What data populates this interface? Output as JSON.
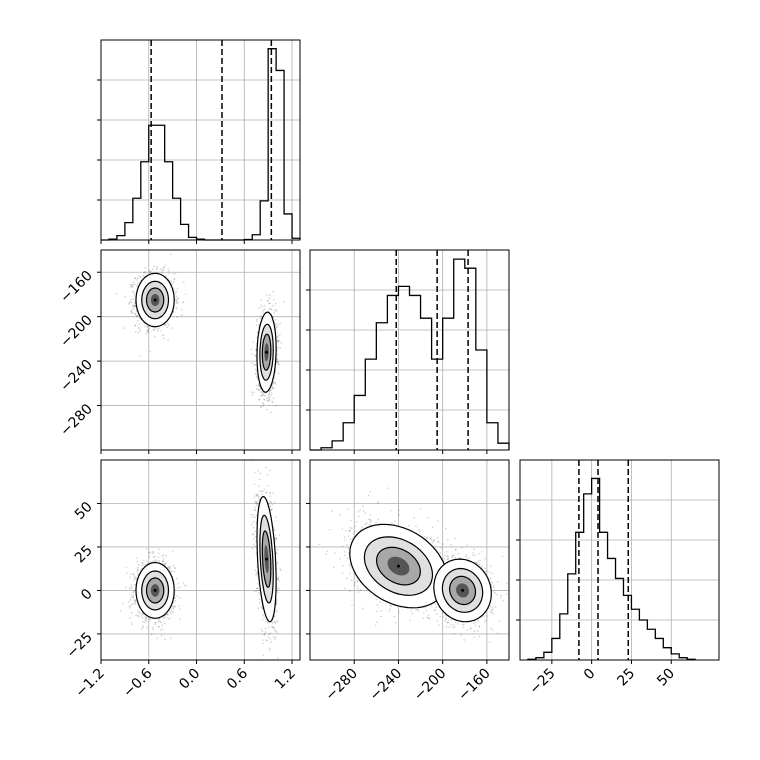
{
  "chart_data": {
    "type": "corner",
    "title": "",
    "parameters": [
      "",
      "",
      ""
    ],
    "quantiles_shown": [
      0.16,
      0.5,
      0.84
    ],
    "grid": true,
    "colors": {
      "line": "#000000",
      "grid": "#b0b0b0",
      "scatter": "#000000",
      "quantile": "#000000"
    },
    "diagonal": [
      {
        "type": "histogram",
        "range": [
          -1.2,
          1.3
        ],
        "ylim": [
          0,
          2300
        ],
        "xticks": [
          -1.2,
          -0.6,
          0.0,
          0.6,
          1.2
        ],
        "xtick_labels": [
          "−1.2",
          "−0.6",
          "0.0",
          "0.6",
          "1.2"
        ],
        "quantiles": [
          -0.57,
          0.32,
          0.94
        ],
        "bin_edges": [
          -1.2,
          -1.1,
          -1.0,
          -0.9,
          -0.8,
          -0.7,
          -0.6,
          -0.5,
          -0.4,
          -0.3,
          -0.2,
          -0.1,
          0.0,
          0.1,
          0.2,
          0.3,
          0.4,
          0.5,
          0.6,
          0.7,
          0.8,
          0.9,
          1.0,
          1.1,
          1.2,
          1.3
        ],
        "counts": [
          0,
          10,
          50,
          200,
          480,
          900,
          1320,
          1320,
          900,
          480,
          180,
          30,
          10,
          0,
          0,
          0,
          0,
          0,
          5,
          60,
          450,
          2200,
          1950,
          300,
          20
        ]
      },
      {
        "type": "histogram",
        "range": [
          -320,
          -140
        ],
        "ylim": [
          0,
          440
        ],
        "xticks": [
          -280,
          -240,
          -200,
          -160
        ],
        "xtick_labels": [
          "−280",
          "−240",
          "−200",
          "−160"
        ],
        "quantiles": [
          -242,
          -205,
          -177
        ],
        "bin_edges": [
          -320,
          -310,
          -300,
          -290,
          -280,
          -270,
          -260,
          -250,
          -240,
          -230,
          -220,
          -210,
          -200,
          -190,
          -180,
          -170,
          -160,
          -150,
          -140
        ],
        "counts": [
          0,
          5,
          20,
          60,
          120,
          200,
          280,
          340,
          360,
          340,
          290,
          200,
          290,
          420,
          400,
          220,
          60,
          15
        ]
      },
      {
        "type": "histogram",
        "range": [
          -45,
          80
        ],
        "ylim": [
          0,
          1300
        ],
        "xticks": [
          -25,
          0,
          25,
          50
        ],
        "xtick_labels": [
          "−25",
          "0",
          "25",
          "50"
        ],
        "quantiles": [
          -8,
          4,
          23
        ],
        "bin_edges": [
          -40,
          -35,
          -30,
          -25,
          -20,
          -15,
          -10,
          -5,
          0,
          5,
          10,
          15,
          20,
          25,
          30,
          35,
          40,
          45,
          50,
          55,
          60,
          65
        ],
        "counts": [
          5,
          15,
          50,
          140,
          300,
          560,
          830,
          1080,
          1180,
          830,
          660,
          530,
          420,
          330,
          260,
          200,
          140,
          80,
          40,
          15,
          5
        ]
      }
    ],
    "off_diagonal": [
      {
        "row": 1,
        "col": 0,
        "xrange": [
          -1.2,
          1.3
        ],
        "yrange": [
          -320,
          -140
        ],
        "yticks": [
          -280,
          -240,
          -200,
          -160
        ],
        "ytick_labels": [
          "−280",
          "−240",
          "−200",
          "−160"
        ],
        "clusters": [
          {
            "cx": -0.52,
            "cy": -185,
            "sx": 0.12,
            "sy": 12,
            "rho": 0.0,
            "n": 1400
          },
          {
            "cx": 0.88,
            "cy": -232,
            "sx": 0.06,
            "sy": 18,
            "rho": 0.1,
            "n": 1400
          }
        ]
      },
      {
        "row": 2,
        "col": 0,
        "xrange": [
          -1.2,
          1.3
        ],
        "yrange": [
          -40,
          75
        ],
        "yticks": [
          -25,
          0,
          25,
          50
        ],
        "ytick_labels": [
          "−25",
          "0",
          "25",
          "50"
        ],
        "clusters": [
          {
            "cx": -0.52,
            "cy": 0,
            "sx": 0.12,
            "sy": 8,
            "rho": 0.0,
            "n": 1400
          },
          {
            "cx": 0.88,
            "cy": 18,
            "sx": 0.06,
            "sy": 18,
            "rho": -0.35,
            "n": 1400
          }
        ]
      },
      {
        "row": 2,
        "col": 1,
        "xrange": [
          -320,
          -140
        ],
        "yrange": [
          -40,
          75
        ],
        "clusters": [
          {
            "cx": -240,
            "cy": 14,
            "sx": 22,
            "sy": 12,
            "rho": -0.3,
            "n": 1500
          },
          {
            "cx": -182,
            "cy": 0,
            "sx": 13,
            "sy": 9,
            "rho": -0.1,
            "n": 1300
          }
        ]
      }
    ]
  }
}
